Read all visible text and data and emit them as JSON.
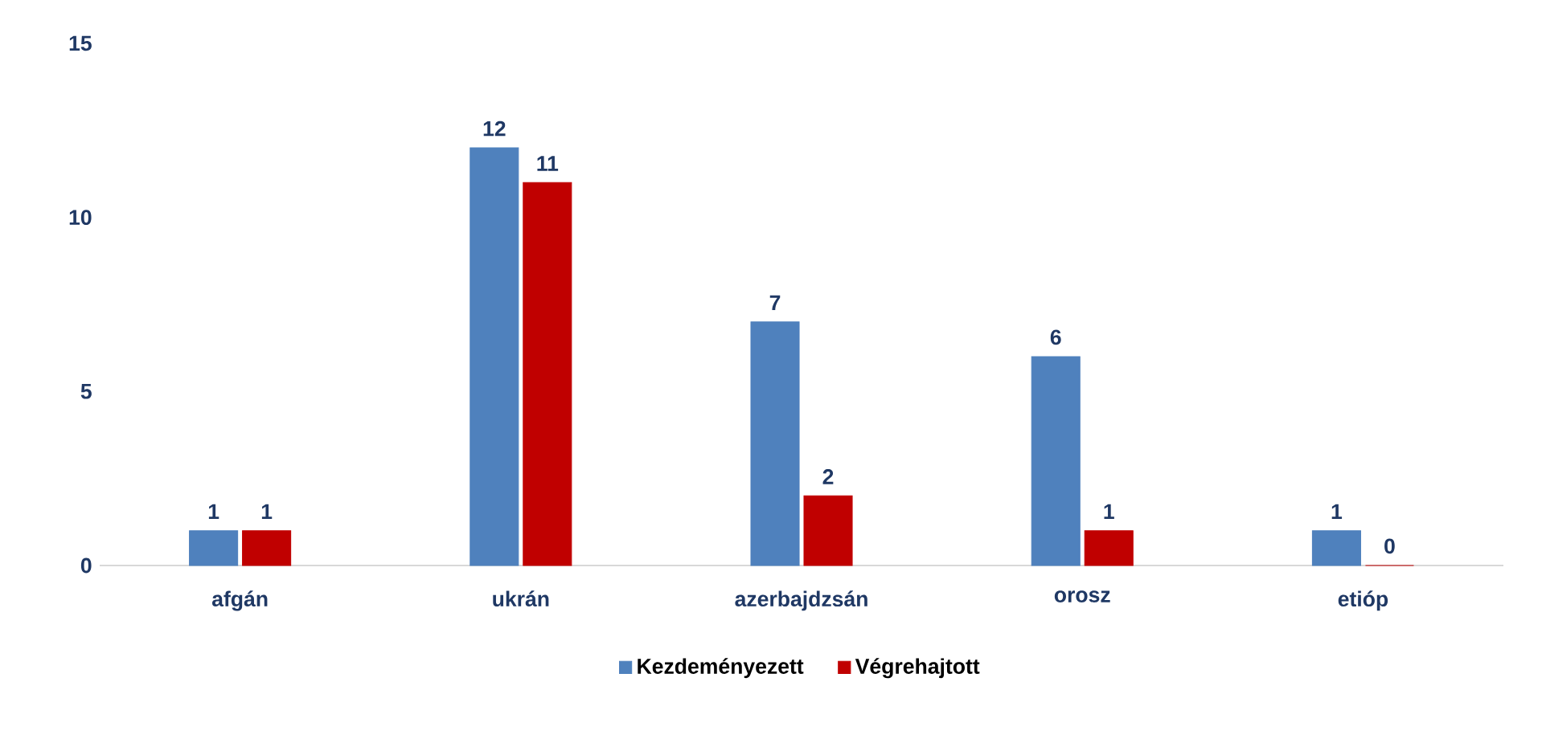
{
  "chart_data": {
    "type": "bar",
    "categories": [
      "afgán",
      "ukrán",
      "azerbajdzsán",
      "orosz",
      "etióp"
    ],
    "series": [
      {
        "name": "Kezdeményezett",
        "color": "#4f81bd",
        "values": [
          1,
          12,
          7,
          6,
          1
        ]
      },
      {
        "name": "Végrehajtott",
        "color": "#c00000",
        "values": [
          1,
          11,
          2,
          1,
          0
        ]
      }
    ],
    "ylim": [
      0,
      15
    ],
    "yticks": [
      0,
      5,
      10,
      15
    ],
    "data_labels": true,
    "legend": "bottom",
    "grid": false
  }
}
